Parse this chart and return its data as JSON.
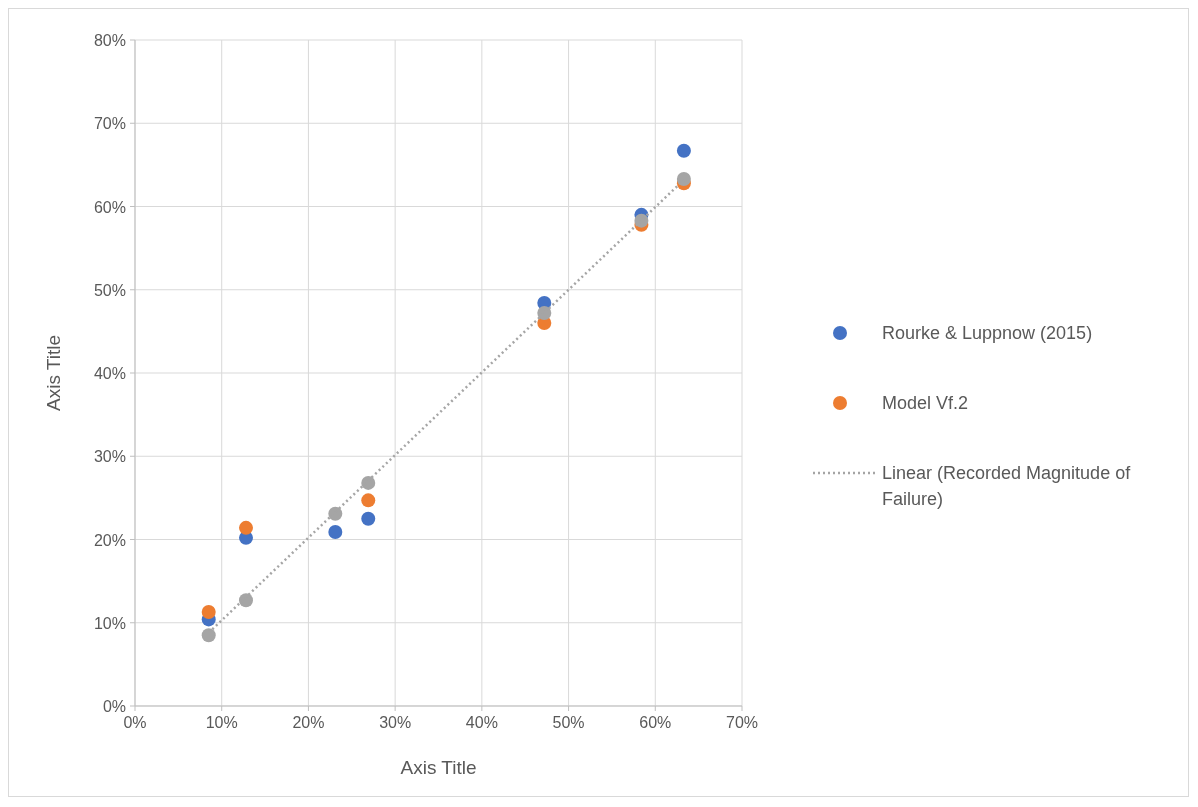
{
  "chart_data": {
    "type": "scatter",
    "xlabel": "Axis Title",
    "ylabel": "Axis Title",
    "xlim": [
      0,
      70
    ],
    "ylim": [
      0,
      80
    ],
    "xticks": [
      {
        "value": 0,
        "label": "0%"
      },
      {
        "value": 10,
        "label": "10%"
      },
      {
        "value": 20,
        "label": "20%"
      },
      {
        "value": 30,
        "label": "30%"
      },
      {
        "value": 40,
        "label": "40%"
      },
      {
        "value": 50,
        "label": "50%"
      },
      {
        "value": 60,
        "label": "60%"
      },
      {
        "value": 70,
        "label": "70%"
      }
    ],
    "yticks": [
      {
        "value": 0,
        "label": "0%"
      },
      {
        "value": 10,
        "label": "10%"
      },
      {
        "value": 20,
        "label": "20%"
      },
      {
        "value": 30,
        "label": "30%"
      },
      {
        "value": 40,
        "label": "40%"
      },
      {
        "value": 50,
        "label": "50%"
      },
      {
        "value": 60,
        "label": "60%"
      },
      {
        "value": 70,
        "label": "70%"
      },
      {
        "value": 80,
        "label": "80%"
      }
    ],
    "x": [
      8.5,
      12.8,
      23.1,
      26.9,
      47.2,
      58.4,
      63.3
    ],
    "grid": true,
    "legend": "right",
    "marker": "circle",
    "series": [
      {
        "name": "Rourke & Luppnow (2015)",
        "color": "#4472c4",
        "values": [
          10.4,
          20.2,
          20.9,
          22.5,
          48.4,
          59.0,
          66.7
        ]
      },
      {
        "name": "Model Vf.2",
        "color": "#ed7d31",
        "values": [
          11.3,
          21.4,
          null,
          24.7,
          46.0,
          57.8,
          62.8
        ]
      },
      {
        "color": "#a5a5a5",
        "values": [
          8.5,
          12.7,
          23.1,
          26.8,
          47.2,
          58.3,
          63.3
        ]
      },
      {
        "name": "Linear (Recorded Magnitude of Failure)",
        "type": "line",
        "line_style": "dotted",
        "marker": "none",
        "color": "#a5a5a5",
        "x": [
          8.5,
          63.3
        ],
        "values": [
          8.8,
          63.2
        ]
      }
    ]
  }
}
